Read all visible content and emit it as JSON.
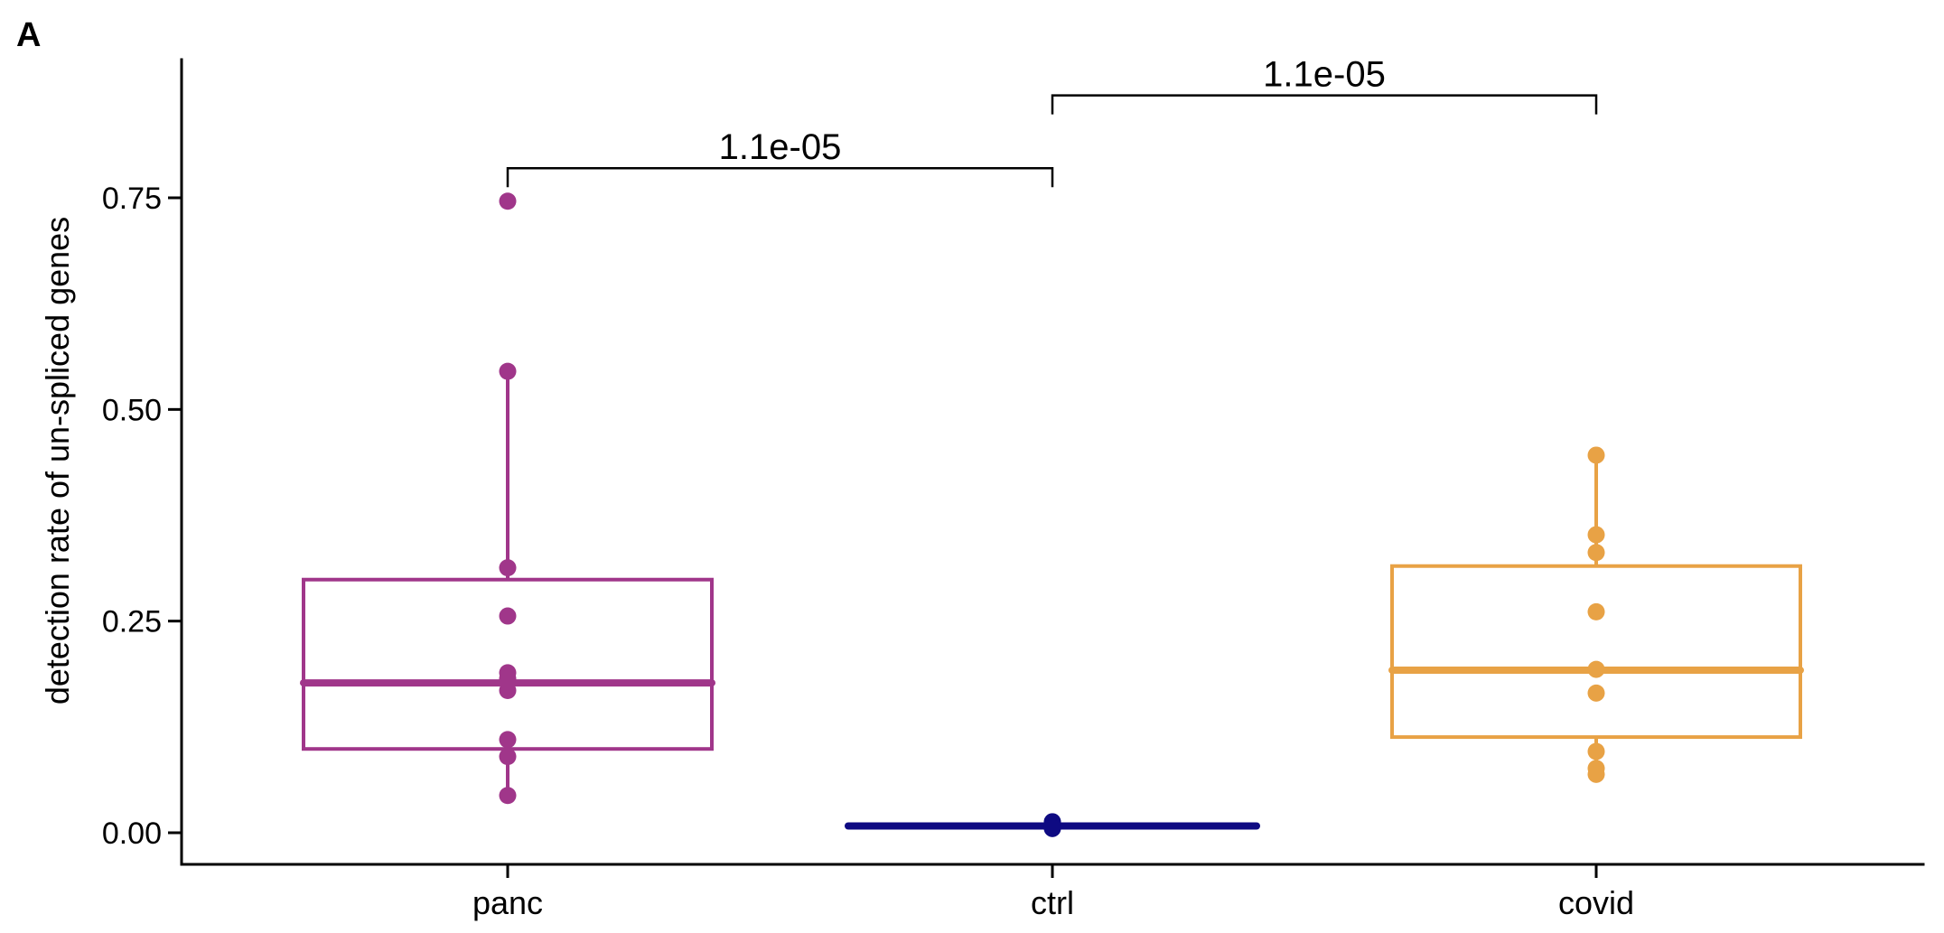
{
  "panel_label": "A",
  "chart_data": {
    "type": "box",
    "title": "",
    "xlabel": "",
    "ylabel": "detection rate of un-spliced genes",
    "ylim": [
      -0.035,
      0.92
    ],
    "yticks": [
      0.0,
      0.25,
      0.5,
      0.75
    ],
    "ytick_labels": [
      "0.00",
      "0.25",
      "0.50",
      "0.75"
    ],
    "grid": false,
    "legend": null,
    "categories": [
      "panc",
      "ctrl",
      "covid"
    ],
    "series": [
      {
        "name": "panc",
        "color": "#A0368A",
        "box": {
          "q1": 0.099,
          "median": 0.177,
          "q3": 0.299,
          "whisker_low": 0.044,
          "whisker_high": 0.545
        },
        "points": [
          0.746,
          0.545,
          0.313,
          0.256,
          0.189,
          0.182,
          0.168,
          0.11,
          0.09,
          0.044
        ]
      },
      {
        "name": "ctrl",
        "color": "#0E0A82",
        "box": {
          "q1": 0.007,
          "median": 0.008,
          "q3": 0.009,
          "whisker_low": 0.005,
          "whisker_high": 0.013
        },
        "points": [
          0.013,
          0.011,
          0.009,
          0.008,
          0.007,
          0.006,
          0.005
        ]
      },
      {
        "name": "covid",
        "color": "#E8A245",
        "box": {
          "q1": 0.113,
          "median": 0.192,
          "q3": 0.315,
          "whisker_low": 0.069,
          "whisker_high": 0.446
        },
        "points": [
          0.446,
          0.352,
          0.331,
          0.261,
          0.193,
          0.165,
          0.096,
          0.076,
          0.069
        ]
      }
    ],
    "annotations": [
      {
        "type": "significance_bracket",
        "from": "panc",
        "to": "ctrl",
        "label": "1.1e-05",
        "y": 0.785
      },
      {
        "type": "significance_bracket",
        "from": "ctrl",
        "to": "covid",
        "label": "1.1e-05",
        "y": 0.871
      }
    ]
  }
}
